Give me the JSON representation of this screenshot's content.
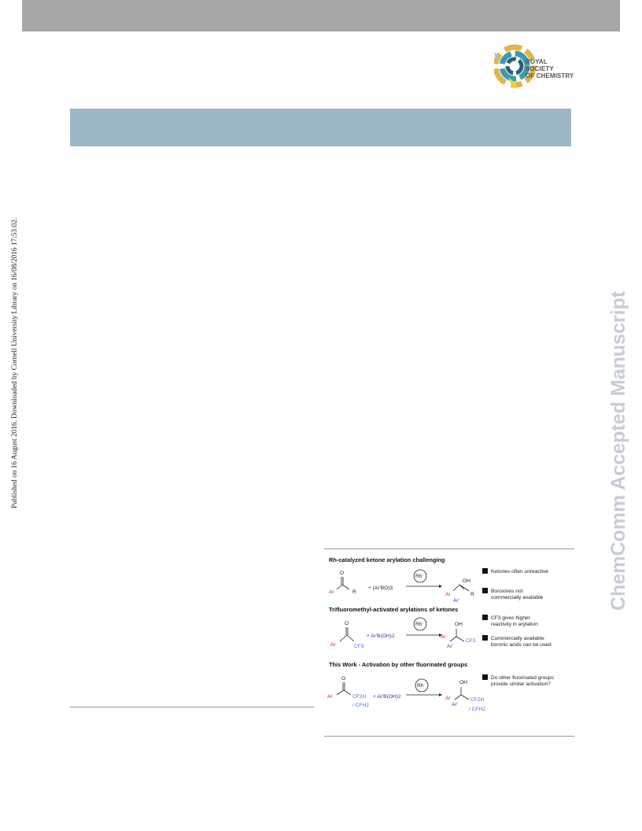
{
  "header": {
    "logo_lines": [
      "ROYAL SOCIETY",
      "OF CHEMISTRY"
    ]
  },
  "sidebar": {
    "text": "Published on 16 August 2016. Downloaded by Cornell University Library on 16/08/2016 17:53:02."
  },
  "watermark": {
    "text": "ChemComm Accepted Manuscript"
  },
  "scheme": {
    "row1": {
      "heading": "Rh-catalyzed ketone arylation challenging",
      "plus_reagent": "+ (Ar'BO)3",
      "catalyst": "Rh",
      "sub_left": "R",
      "sub_right": "R",
      "ar": "Ar",
      "ar_prime": "Ar'",
      "oh": "OH",
      "o": "O",
      "note1": "Ketones often unreactive",
      "note2a": "Boroxines not",
      "note2b": "commercially available"
    },
    "row2": {
      "heading": "Trifluoromethyl-activated arylations of ketones",
      "reagent": "+ Ar'B(OH)2",
      "cf3": "CF3",
      "catalyst": "Rh",
      "note1a": "CF3 gives higher",
      "note1b": "reactivity in arylation",
      "note2a": "Commercially available",
      "note2b": "boronic acids can be used"
    },
    "row3": {
      "heading": "This Work - Activation by other fluorinated groups",
      "reagent": "+ Ar'B(OH)2",
      "group_a": "CF2H",
      "group_b": "/ CFH2",
      "catalyst": "Rh",
      "note1a": "Do other fluorinated groups",
      "note1b": "provide similar activation?"
    }
  }
}
